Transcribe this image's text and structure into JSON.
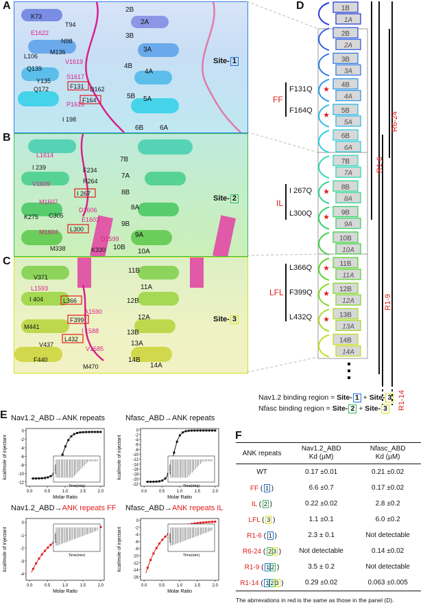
{
  "panels": {
    "A": {
      "letter": "A",
      "site_label": "Site-",
      "site_num": "1",
      "site_color": "#1f6fe0",
      "labels_left": [
        "K73",
        "T94",
        "N98",
        "E1622",
        "L106",
        "M136",
        "Q139",
        "V1619",
        "S1617",
        "F131",
        "Y135",
        "Q172",
        "D162",
        "P1616",
        "F164",
        "I 198"
      ],
      "labels_right": [
        "2B",
        "2A",
        "3B",
        "3A",
        "4B",
        "4A",
        "5B",
        "5A",
        "6B",
        "6A"
      ]
    },
    "B": {
      "letter": "B",
      "site_label": "Site-",
      "site_num": "2",
      "site_color": "#33bb55",
      "labels_left": [
        "L1614",
        "I 239",
        "F234",
        "V1609",
        "R264",
        "I 267",
        "M1607",
        "D1606",
        "K275",
        "C305",
        "E1603",
        "M1604",
        "L300",
        "D1599",
        "M338",
        "K330"
      ],
      "labels_right": [
        "7B",
        "7A",
        "8B",
        "8A",
        "9B",
        "9A",
        "10B",
        "10A"
      ]
    },
    "C": {
      "letter": "C",
      "site_label": "Site-",
      "site_num": "3",
      "site_color": "#bccc1a",
      "labels_left": [
        "V371",
        "L1593",
        "I 404",
        "L366",
        "A1590",
        "F399",
        "M441",
        "I 1588",
        "L432",
        "V437",
        "V1585",
        "F440",
        "M470"
      ],
      "labels_right": [
        "11B",
        "11A",
        "12B",
        "12A",
        "13B",
        "13A",
        "14B",
        "14A"
      ]
    },
    "D": {
      "letter": "D",
      "repeats": [
        {
          "b": "1B",
          "a": "1A",
          "color": "#2a3fd6"
        },
        {
          "b": "2B",
          "a": "2A",
          "color": "#2f5fe0"
        },
        {
          "b": "3B",
          "a": "3A",
          "color": "#2f7ee4"
        },
        {
          "b": "4B",
          "a": "4A",
          "color": "#2f9ae8"
        },
        {
          "b": "5B",
          "a": "5A",
          "color": "#2fb8e6"
        },
        {
          "b": "6B",
          "a": "6A",
          "color": "#2fd0e0"
        },
        {
          "b": "7B",
          "a": "7A",
          "color": "#2fd8b8"
        },
        {
          "b": "8B",
          "a": "8A",
          "color": "#30d890"
        },
        {
          "b": "9B",
          "a": "9A",
          "color": "#34d468"
        },
        {
          "b": "10B",
          "a": "10A",
          "color": "#3fd044"
        },
        {
          "b": "11B",
          "a": "11A",
          "color": "#5ad42e"
        },
        {
          "b": "12B",
          "a": "12A",
          "color": "#80d82a"
        },
        {
          "b": "13B",
          "a": "13A",
          "color": "#a6dc28"
        },
        {
          "b": "14B",
          "a": "14A",
          "color": "#c8dc26"
        }
      ],
      "mutation_groups": [
        {
          "name": "FF",
          "muts": [
            "F131Q",
            "F164Q"
          ]
        },
        {
          "name": "IL",
          "muts": [
            "I 267Q",
            "L300Q"
          ]
        },
        {
          "name": "LFL",
          "muts": [
            "L366Q",
            "F399Q",
            "L432Q"
          ]
        }
      ],
      "constructs": [
        "R1-6",
        "R6-24",
        "R1-9",
        "R1-14"
      ],
      "binding_line1": {
        "prefix": "Nav1.2 binding region = ",
        "s1": "Site-",
        "n1": "1",
        "plus": " + ",
        "s2": "Site-",
        "n2": "3"
      },
      "binding_line2": {
        "prefix": "Nfasc binding region = ",
        "s1": "Site-",
        "n1": "2",
        "plus": " + ",
        "s2": "Site-",
        "n2": "3"
      }
    },
    "E": {
      "letter": "E",
      "plots": [
        {
          "title_black": "Nav1.2_ABD→ANK repeats",
          "title_red": "",
          "color": "#111111",
          "yticks": [
            "0",
            "-2",
            "-4",
            "-6",
            "-8",
            "-10",
            "-12"
          ],
          "ylim": [
            -13,
            0.5
          ]
        },
        {
          "title_black": "Nfasc_ABD→ANK repeats",
          "title_red": "",
          "color": "#111111",
          "yticks": [
            "0",
            "-2",
            "-4",
            "-6",
            "-8",
            "-10",
            "-12",
            "-14",
            "-16",
            "-18",
            "-20",
            "-22"
          ],
          "ylim": [
            -23,
            0.5
          ]
        },
        {
          "title_black": "Nav1.2_ABD→",
          "title_red": "ANK repeats FF",
          "color": "#e01b1b",
          "yticks": [
            "0",
            "-1",
            "-2",
            "-3",
            "-4"
          ],
          "ylim": [
            -4.5,
            0.3
          ]
        },
        {
          "title_black": "Nfasc_ABD→",
          "title_red": "ANK repeats IL",
          "color": "#e01b1b",
          "yticks": [
            "0",
            "-2",
            "-4",
            "-6",
            "-8",
            "-10",
            "-12",
            "-14",
            "-16"
          ],
          "ylim": [
            -17,
            0.5
          ]
        }
      ],
      "ylabel": "kcal/mole of injectant",
      "xlabel": "Molar Ratio",
      "xticks": [
        "0.0",
        "0.5",
        "1.0",
        "1.5",
        "2.0"
      ],
      "inset_xlabel": "Time(min)",
      "inset_ylabel": "µcal/sec"
    },
    "F": {
      "letter": "F",
      "header": [
        "ANK repeats",
        "Nav1.2_ABD",
        "Nfasc_ABD"
      ],
      "subheader": [
        "",
        "Kd (µM)",
        "Kd (µM)"
      ],
      "rows": [
        {
          "name": "WT",
          "red": false,
          "sites": "",
          "nav": "0.17 ±0.01",
          "nfasc": "0.21 ±0.02"
        },
        {
          "name": "FF",
          "red": true,
          "sites": "1",
          "nav": "6.6 ±0.7",
          "nfasc": "0.17 ±0.02"
        },
        {
          "name": "IL",
          "red": true,
          "sites": "2",
          "nav": "0.22 ±0.02",
          "nfasc": "2.8 ±0.2"
        },
        {
          "name": "LFL",
          "red": true,
          "sites": "3",
          "nav": "1.1 ±0.1",
          "nfasc": "6.0 ±0.2"
        },
        {
          "name": "R1-6",
          "red": true,
          "sites": "1",
          "nav": "2.3 ± 0.1",
          "nfasc": "Not detectable"
        },
        {
          "name": "R6-24",
          "red": true,
          "sites": "23",
          "nav": "Not detectable",
          "nfasc": "0.14 ±0.02"
        },
        {
          "name": "R1-9",
          "red": true,
          "sites": "12",
          "nav": "3.5 ± 0.2",
          "nfasc": "Not detectable"
        },
        {
          "name": "R1-14",
          "red": true,
          "sites": "123",
          "nav": "0.29 ±0.02",
          "nfasc": "0.063 ±0.005"
        }
      ],
      "note": "The abrrevations in red is the same as those in the panel (D)."
    }
  },
  "colors": {
    "site1": "#1f6fe0",
    "site2": "#33bb55",
    "site3": "#d6e020",
    "red": "#e01b1b",
    "magenta": "#d81f8c"
  }
}
